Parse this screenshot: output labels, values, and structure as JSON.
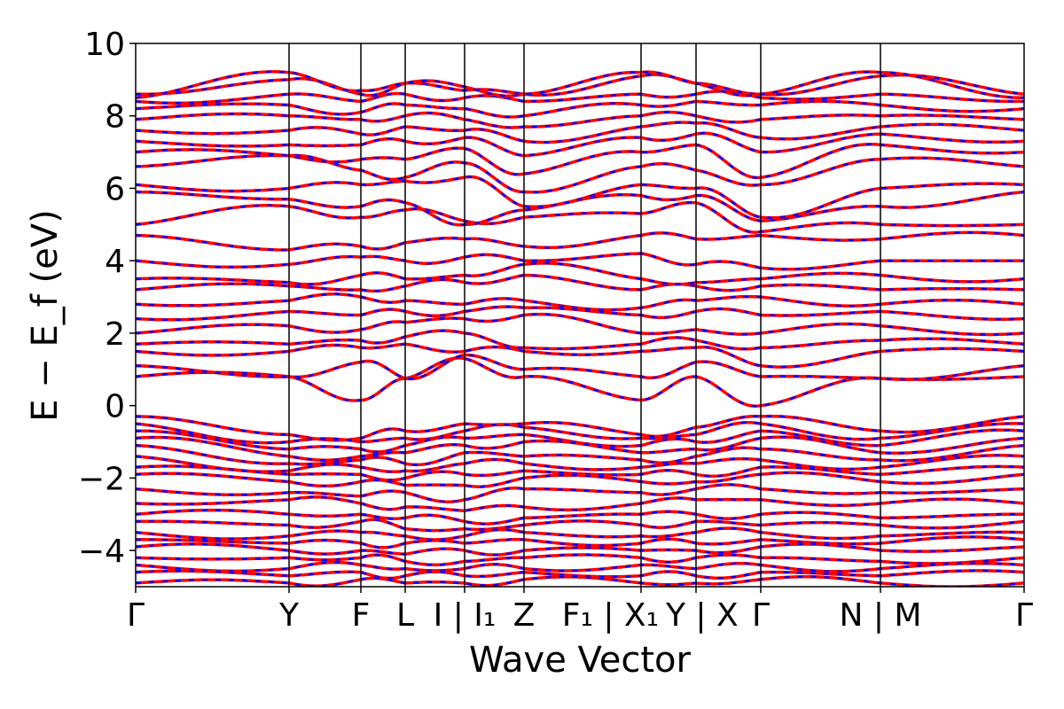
{
  "chart_data": {
    "type": "line",
    "title": "",
    "xlabel": "Wave Vector",
    "ylabel": "E − E_f (eV)",
    "ylim": [
      -5,
      10
    ],
    "yticks": [
      -4,
      -2,
      0,
      2,
      4,
      6,
      8,
      10
    ],
    "ytick_labels": [
      "−4",
      "−2",
      "0",
      "2",
      "4",
      "6",
      "8",
      "10"
    ],
    "kpath": [
      {
        "label": "Γ",
        "k": 0.0
      },
      {
        "label": "Y",
        "k": 1.73
      },
      {
        "label": "F",
        "k": 2.54
      },
      {
        "label": "L",
        "k": 3.04
      },
      {
        "label": "I | I₁",
        "k": 3.71
      },
      {
        "label": "Z",
        "k": 4.38
      },
      {
        "label": "F₁ | X₁",
        "k": 5.7
      },
      {
        "label": "Y | X",
        "k": 6.32
      },
      {
        "label": "Γ",
        "k": 7.05
      },
      {
        "label": "N | M",
        "k": 8.4
      },
      {
        "label": "Γ",
        "k": 10.02
      }
    ],
    "xlim": [
      0,
      10.02
    ],
    "grid": false,
    "series": [
      {
        "color": "#ff0000",
        "style": "solid"
      },
      {
        "color": "#0000ff",
        "style": "dashed"
      }
    ],
    "bands": [
      [
        0.8,
        0.8,
        0.15,
        0.75,
        1.3,
        0.8,
        0.15,
        0.8,
        0.0,
        0.75,
        0.8
      ],
      [
        1.1,
        0.8,
        1.2,
        0.75,
        1.4,
        1.0,
        0.8,
        1.2,
        0.8,
        0.75,
        1.1
      ],
      [
        1.5,
        1.5,
        1.6,
        1.7,
        1.5,
        1.5,
        1.5,
        1.6,
        1.1,
        1.5,
        1.5
      ],
      [
        1.7,
        1.7,
        1.8,
        1.9,
        2.0,
        1.6,
        1.7,
        1.8,
        1.6,
        1.8,
        1.7
      ],
      [
        2.0,
        2.2,
        2.1,
        2.3,
        2.4,
        2.5,
        2.0,
        2.1,
        2.0,
        2.2,
        2.0
      ],
      [
        2.4,
        2.6,
        2.5,
        2.6,
        2.6,
        2.7,
        2.5,
        2.6,
        2.5,
        2.6,
        2.4
      ],
      [
        2.8,
        2.9,
        3.0,
        2.9,
        2.8,
        2.9,
        2.7,
        2.9,
        3.0,
        2.8,
        2.8
      ],
      [
        3.2,
        3.3,
        3.2,
        3.3,
        3.4,
        3.6,
        3.2,
        3.3,
        3.3,
        3.2,
        3.2
      ],
      [
        3.5,
        3.4,
        3.6,
        3.5,
        3.6,
        3.9,
        3.5,
        3.4,
        3.5,
        3.6,
        3.5
      ],
      [
        4.0,
        3.9,
        4.1,
        4.0,
        4.1,
        4.0,
        4.2,
        3.9,
        3.8,
        4.0,
        4.0
      ],
      [
        4.7,
        4.3,
        4.4,
        4.5,
        4.6,
        4.4,
        4.7,
        4.6,
        4.7,
        4.6,
        4.7
      ],
      [
        5.0,
        5.5,
        5.2,
        5.4,
        5.1,
        5.2,
        5.3,
        5.6,
        4.8,
        5.0,
        5.0
      ],
      [
        5.9,
        5.7,
        5.5,
        5.6,
        5.0,
        5.4,
        5.8,
        5.8,
        5.1,
        5.5,
        5.9
      ],
      [
        6.1,
        6.0,
        6.1,
        6.2,
        6.3,
        5.5,
        6.1,
        6.0,
        5.2,
        6.0,
        6.1
      ],
      [
        6.6,
        6.9,
        6.5,
        6.3,
        6.7,
        5.9,
        6.6,
        6.5,
        6.1,
        6.8,
        6.6
      ],
      [
        7.0,
        6.9,
        6.8,
        6.8,
        7.1,
        6.4,
        7.0,
        7.2,
        6.3,
        7.2,
        7.0
      ],
      [
        7.3,
        7.2,
        7.2,
        7.3,
        7.4,
        6.9,
        7.4,
        7.5,
        7.0,
        7.5,
        7.3
      ],
      [
        7.6,
        7.6,
        7.5,
        7.7,
        7.6,
        7.3,
        7.7,
        7.8,
        7.4,
        7.7,
        7.6
      ],
      [
        7.9,
        8.0,
        7.9,
        8.0,
        7.9,
        7.7,
        8.0,
        8.0,
        7.9,
        8.0,
        7.9
      ],
      [
        8.2,
        8.3,
        8.1,
        8.3,
        8.2,
        8.0,
        8.3,
        8.4,
        8.3,
        8.3,
        8.2
      ],
      [
        8.4,
        8.6,
        8.4,
        8.6,
        8.5,
        8.4,
        8.6,
        8.6,
        8.5,
        8.6,
        8.4
      ],
      [
        8.6,
        9.0,
        8.6,
        8.9,
        8.7,
        8.6,
        9.1,
        8.9,
        8.6,
        9.1,
        8.6
      ],
      [
        8.5,
        9.2,
        8.7,
        8.9,
        8.8,
        8.6,
        9.2,
        8.9,
        8.6,
        9.2,
        8.5
      ],
      [
        -0.3,
        -0.8,
        -0.9,
        -0.7,
        -0.5,
        -0.5,
        -0.8,
        -0.6,
        -0.3,
        -0.7,
        -0.3
      ],
      [
        -0.5,
        -1.0,
        -1.0,
        -0.9,
        -0.7,
        -0.6,
        -0.9,
        -0.8,
        -0.5,
        -0.9,
        -0.5
      ],
      [
        -0.7,
        -1.2,
        -1.2,
        -1.1,
        -0.9,
        -0.8,
        -1.1,
        -1.0,
        -0.7,
        -1.1,
        -0.7
      ],
      [
        -0.9,
        -1.4,
        -1.4,
        -1.3,
        -1.1,
        -1.0,
        -1.3,
        -1.2,
        -0.9,
        -1.3,
        -0.9
      ],
      [
        -1.1,
        -1.6,
        -1.5,
        -1.6,
        -1.3,
        -1.4,
        -1.5,
        -1.4,
        -1.2,
        -1.5,
        -1.1
      ],
      [
        -1.4,
        -1.8,
        -1.7,
        -1.8,
        -1.6,
        -1.6,
        -1.7,
        -1.6,
        -1.5,
        -1.7,
        -1.4
      ],
      [
        -1.7,
        -1.9,
        -1.9,
        -2.0,
        -1.9,
        -1.8,
        -1.9,
        -1.9,
        -1.7,
        -1.9,
        -1.7
      ],
      [
        -1.9,
        -2.1,
        -2.1,
        -2.2,
        -2.2,
        -2.0,
        -2.1,
        -2.1,
        -1.9,
        -2.1,
        -1.9
      ],
      [
        -2.3,
        -2.4,
        -2.5,
        -2.4,
        -2.6,
        -2.3,
        -2.4,
        -2.3,
        -2.3,
        -2.4,
        -2.3
      ],
      [
        -2.7,
        -2.6,
        -2.7,
        -2.8,
        -2.9,
        -2.8,
        -2.7,
        -2.6,
        -2.6,
        -2.7,
        -2.7
      ],
      [
        -3.0,
        -3.0,
        -3.0,
        -3.1,
        -3.2,
        -3.1,
        -3.0,
        -3.0,
        -3.0,
        -3.1,
        -3.0
      ],
      [
        -3.2,
        -3.3,
        -3.2,
        -3.4,
        -3.4,
        -3.3,
        -3.3,
        -3.2,
        -3.3,
        -3.3,
        -3.2
      ],
      [
        -3.5,
        -3.6,
        -3.5,
        -3.6,
        -3.6,
        -3.5,
        -3.6,
        -3.5,
        -3.5,
        -3.6,
        -3.5
      ],
      [
        -3.7,
        -3.8,
        -3.8,
        -3.8,
        -3.8,
        -3.7,
        -3.8,
        -3.8,
        -3.7,
        -3.8,
        -3.7
      ],
      [
        -3.9,
        -4.0,
        -4.0,
        -4.1,
        -4.0,
        -4.0,
        -4.0,
        -4.0,
        -3.9,
        -4.0,
        -3.9
      ],
      [
        -4.2,
        -4.2,
        -4.2,
        -4.3,
        -4.3,
        -4.2,
        -4.2,
        -4.2,
        -4.2,
        -4.3,
        -4.2
      ],
      [
        -4.4,
        -4.5,
        -4.4,
        -4.5,
        -4.5,
        -4.5,
        -4.4,
        -4.5,
        -4.4,
        -4.5,
        -4.4
      ],
      [
        -4.6,
        -4.7,
        -4.6,
        -4.7,
        -4.7,
        -4.6,
        -4.7,
        -4.7,
        -4.6,
        -4.7,
        -4.6
      ],
      [
        -4.9,
        -4.9,
        -4.8,
        -4.9,
        -4.9,
        -4.8,
        -4.9,
        -4.9,
        -4.8,
        -4.9,
        -4.9
      ]
    ]
  }
}
